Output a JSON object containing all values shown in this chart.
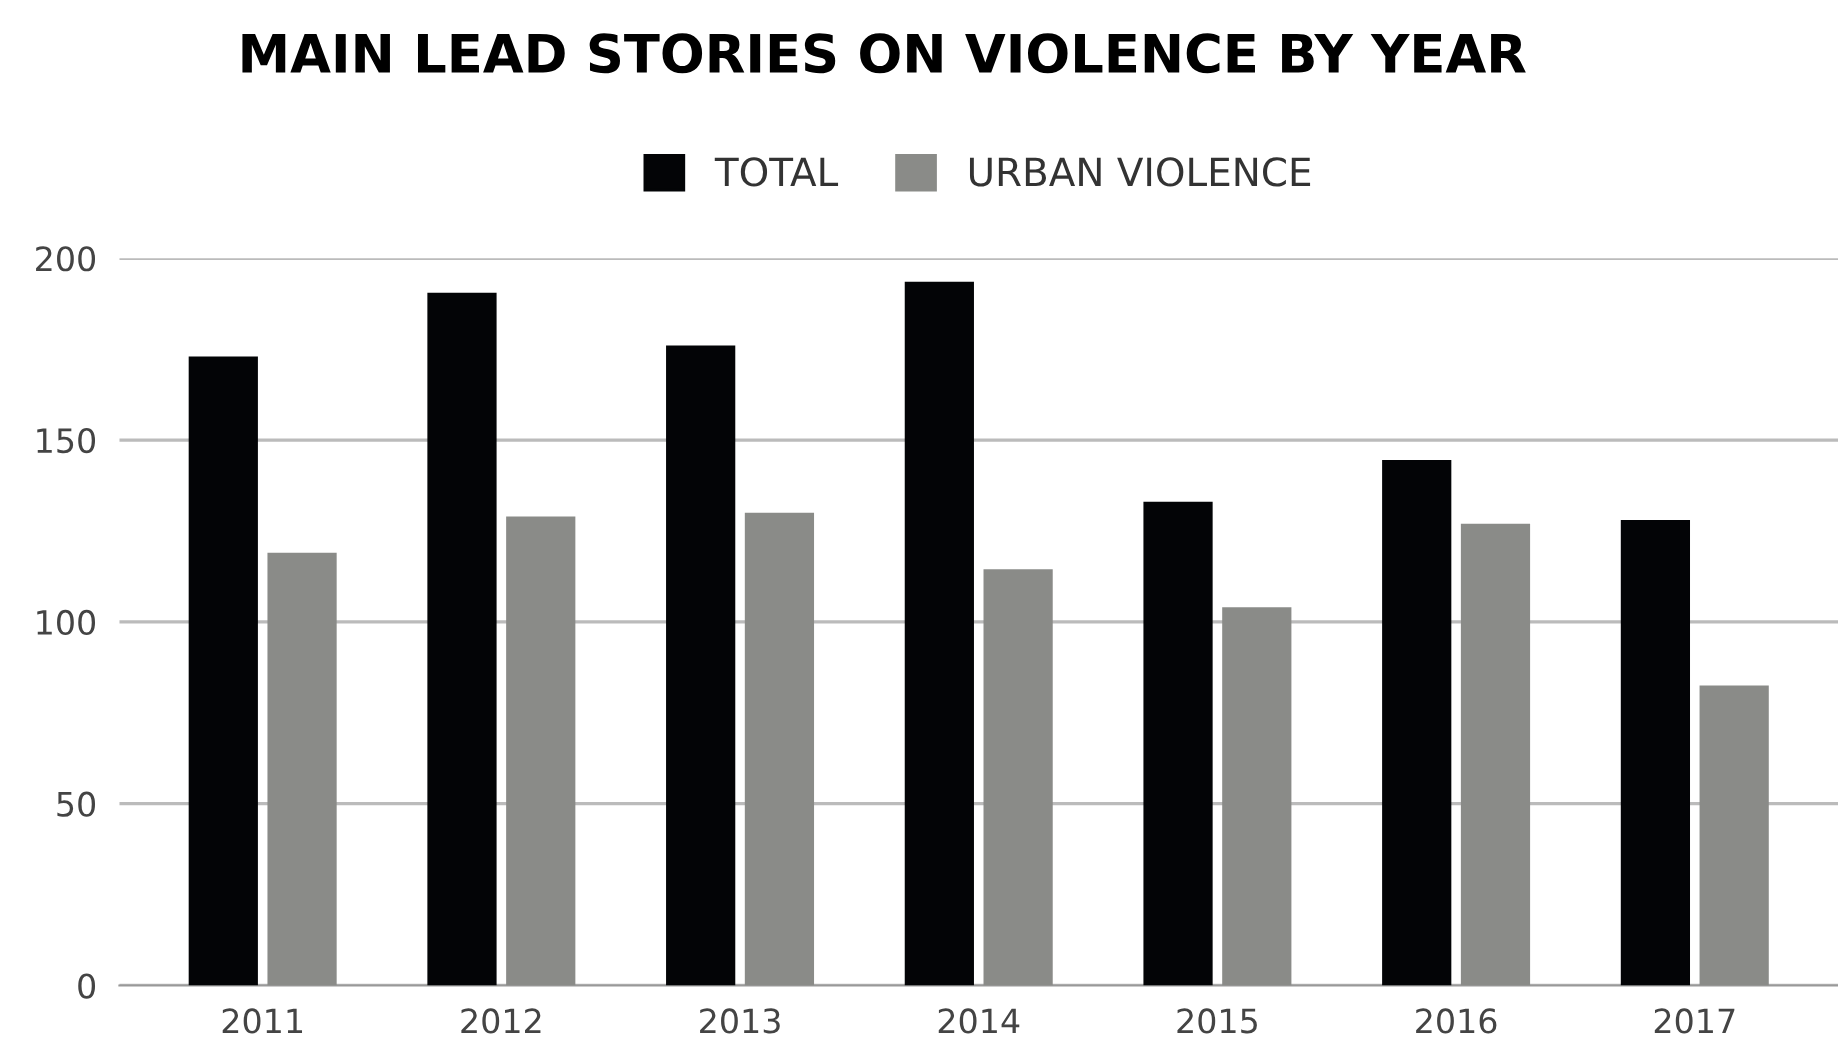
{
  "chart_data": {
    "type": "bar",
    "title": "MAIN LEAD STORIES ON VIOLENCE BY YEAR",
    "categories": [
      "2011",
      "2012",
      "2013",
      "2014",
      "2015",
      "2016",
      "2017"
    ],
    "series": [
      {
        "name": "TOTAL",
        "color": "#030406",
        "values": [
          173,
          190.5,
          176,
          193.5,
          133,
          144.5,
          128
        ]
      },
      {
        "name": "URBAN VIOLENCE",
        "color": "#8a8b88",
        "values": [
          119,
          129,
          130,
          114.5,
          104,
          127,
          82.5
        ]
      }
    ],
    "ylim": [
      0,
      200
    ],
    "yticks": [
      0,
      50,
      100,
      150,
      200
    ],
    "grid": "y",
    "legend": "top"
  }
}
